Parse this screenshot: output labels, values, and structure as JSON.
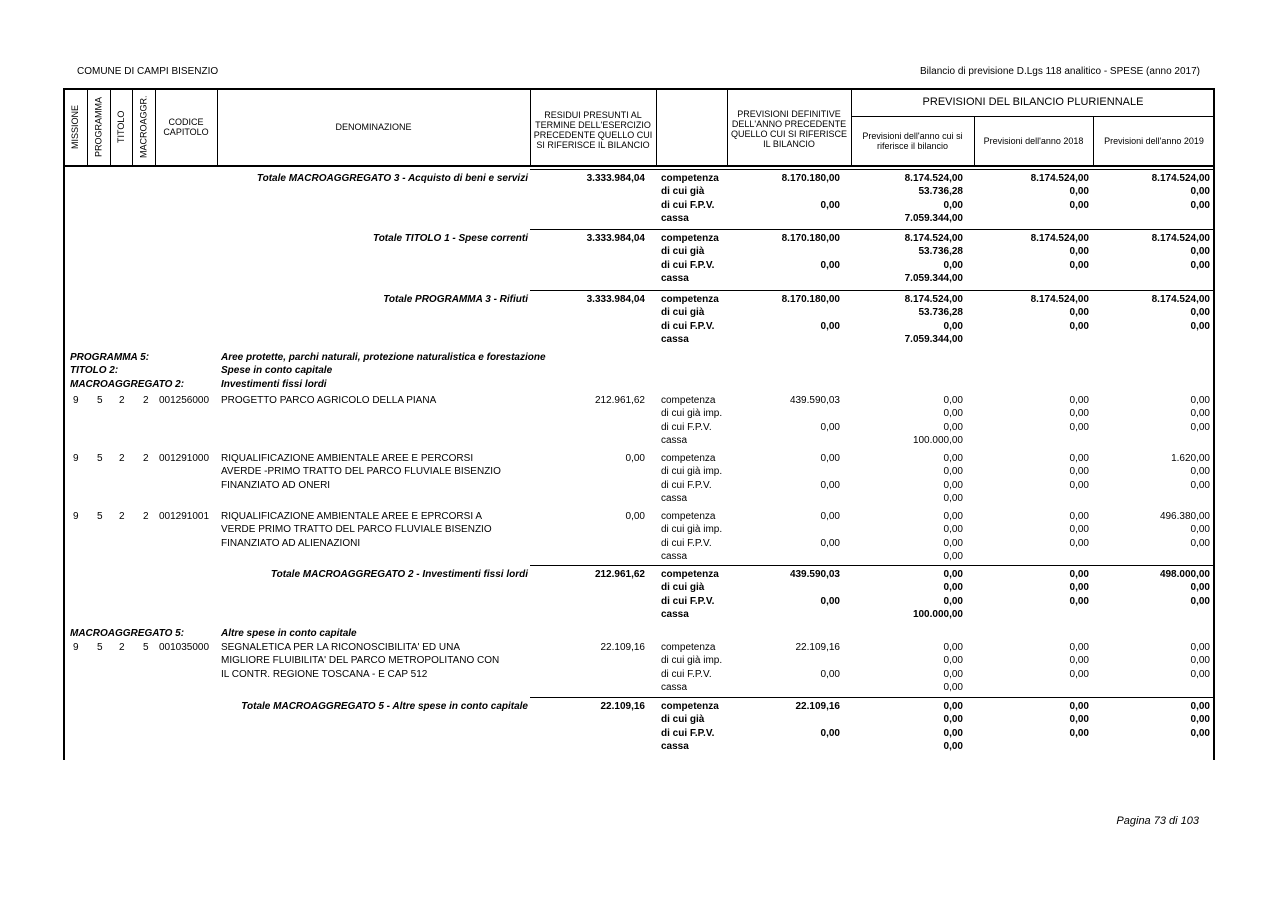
{
  "header": {
    "left": "COMUNE DI CAMPI BISENZIO",
    "right": "Bilancio di previsione D.Lgs 118 analitico - SPESE (anno 2017)"
  },
  "columns": {
    "missione": "MISSIONE",
    "programma": "PROGRAMMA",
    "titolo": "TITOLO",
    "macroaggr": "MACROAGGR.",
    "codice": "CODICE CAPITOLO",
    "denominazione": "DENOMINAZIONE",
    "residui": "RESIDUI PRESUNTI AL TERMINE DELL'ESERCIZIO PRECEDENTE QUELLO CUI SI RIFERISCE IL BILANCIO",
    "previsioni_definitive": "PREVISIONI DEFINITIVE DELL'ANNO PRECEDENTE QUELLO CUI SI RIFERISCE IL BILANCIO",
    "pluriennale": "PREVISIONI DEL BILANCIO PLURIENNALE",
    "anno1": "Previsioni dell'anno cui si riferisce il bilancio",
    "anno2": "Previsioni dell'anno 2018",
    "anno3": "Previsioni dell'anno 2019"
  },
  "blocks": [
    {
      "kind": "total",
      "label": "Totale MACROAGGREGATO 3 - Acquisto di beni e servizi",
      "residui": "3.333.984,04",
      "rows": [
        [
          "competenza",
          "8.170.180,00",
          "8.174.524,00",
          "8.174.524,00",
          "8.174.524,00"
        ],
        [
          "di cui già",
          null,
          "53.736,28",
          "0,00",
          "0,00"
        ],
        [
          "di cui F.P.V.",
          "0,00",
          "0,00",
          "0,00",
          "0,00"
        ],
        [
          "cassa",
          null,
          "7.059.344,00",
          null,
          null
        ]
      ]
    },
    {
      "kind": "total",
      "label": "Totale TITOLO 1 - Spese correnti",
      "residui": "3.333.984,04",
      "rows": [
        [
          "competenza",
          "8.170.180,00",
          "8.174.524,00",
          "8.174.524,00",
          "8.174.524,00"
        ],
        [
          "di cui già",
          null,
          "53.736,28",
          "0,00",
          "0,00"
        ],
        [
          "di cui F.P.V.",
          "0,00",
          "0,00",
          "0,00",
          "0,00"
        ],
        [
          "cassa",
          null,
          "7.059.344,00",
          null,
          null
        ]
      ]
    },
    {
      "kind": "total",
      "label": "Totale PROGRAMMA 3 - Rifiuti",
      "residui": "3.333.984,04",
      "rows": [
        [
          "competenza",
          "8.170.180,00",
          "8.174.524,00",
          "8.174.524,00",
          "8.174.524,00"
        ],
        [
          "di cui già",
          null,
          "53.736,28",
          "0,00",
          "0,00"
        ],
        [
          "di cui F.P.V.",
          "0,00",
          "0,00",
          "0,00",
          "0,00"
        ],
        [
          "cassa",
          null,
          "7.059.344,00",
          null,
          null
        ]
      ]
    },
    {
      "kind": "heading",
      "lines": [
        [
          "PROGRAMMA 5:",
          "Aree protette, parchi naturali, protezione naturalistica e forestazione"
        ],
        [
          "TITOLO 2:",
          "Spese in conto capitale"
        ],
        [
          "MACROAGGREGATO 2:",
          "Investimenti fissi lordi"
        ]
      ]
    },
    {
      "kind": "item",
      "codes": [
        "9",
        "5",
        "2",
        "2",
        "001256000"
      ],
      "desc": [
        "PROGETTO PARCO AGRICOLO DELLA PIANA"
      ],
      "residui": "212.961,62",
      "rows": [
        [
          "competenza",
          "439.590,03",
          "0,00",
          "0,00",
          "0,00"
        ],
        [
          "di cui già imp.",
          null,
          "0,00",
          "0,00",
          "0,00"
        ],
        [
          "di cui F.P.V.",
          "0,00",
          "0,00",
          "0,00",
          "0,00"
        ],
        [
          "cassa",
          null,
          "100.000,00",
          null,
          null
        ]
      ]
    },
    {
      "kind": "item",
      "codes": [
        "9",
        "5",
        "2",
        "2",
        "001291000"
      ],
      "desc": [
        "RIQUALIFICAZIONE AMBIENTALE AREE E PERCORSI",
        "AVERDE -PRIMO TRATTO DEL PARCO FLUVIALE BISENZIO",
        "FINANZIATO AD ONERI"
      ],
      "residui": "0,00",
      "rows": [
        [
          "competenza",
          "0,00",
          "0,00",
          "0,00",
          "1.620,00"
        ],
        [
          "di cui già imp.",
          null,
          "0,00",
          "0,00",
          "0,00"
        ],
        [
          "di cui F.P.V.",
          "0,00",
          "0,00",
          "0,00",
          "0,00"
        ],
        [
          "cassa",
          null,
          "0,00",
          null,
          null
        ]
      ]
    },
    {
      "kind": "item",
      "codes": [
        "9",
        "5",
        "2",
        "2",
        "001291001"
      ],
      "desc": [
        "RIQUALIFICAZIONE AMBIENTALE AREE E EPRCORSI A",
        "VERDE PRIMO TRATTO DEL PARCO FLUVIALE BISENZIO",
        "FINANZIATO AD ALIENAZIONI"
      ],
      "residui": "0,00",
      "rows": [
        [
          "competenza",
          "0,00",
          "0,00",
          "0,00",
          "496.380,00"
        ],
        [
          "di cui già imp.",
          null,
          "0,00",
          "0,00",
          "0,00"
        ],
        [
          "di cui F.P.V.",
          "0,00",
          "0,00",
          "0,00",
          "0,00"
        ],
        [
          "cassa",
          null,
          "0,00",
          null,
          null
        ]
      ]
    },
    {
      "kind": "total",
      "label": "Totale MACROAGGREGATO 2 - Investimenti fissi lordi",
      "residui": "212.961,62",
      "rows": [
        [
          "competenza",
          "439.590,03",
          "0,00",
          "0,00",
          "498.000,00"
        ],
        [
          "di cui già",
          null,
          "0,00",
          "0,00",
          "0,00"
        ],
        [
          "di cui F.P.V.",
          "0,00",
          "0,00",
          "0,00",
          "0,00"
        ],
        [
          "cassa",
          null,
          "100.000,00",
          null,
          null
        ]
      ]
    },
    {
      "kind": "heading",
      "lines": [
        [
          "MACROAGGREGATO 5:",
          "Altre spese in conto capitale"
        ]
      ]
    },
    {
      "kind": "item",
      "codes": [
        "9",
        "5",
        "2",
        "5",
        "001035000"
      ],
      "desc": [
        "SEGNALETICA PER LA RICONOSCIBILITA' ED UNA",
        "MIGLIORE FLUIBILITA' DEL PARCO METROPOLITANO CON",
        "IL CONTR. REGIONE TOSCANA - E CAP 512"
      ],
      "residui": "22.109,16",
      "rows": [
        [
          "competenza",
          "22.109,16",
          "0,00",
          "0,00",
          "0,00"
        ],
        [
          "di cui già imp.",
          null,
          "0,00",
          "0,00",
          "0,00"
        ],
        [
          "di cui F.P.V.",
          "0,00",
          "0,00",
          "0,00",
          "0,00"
        ],
        [
          "cassa",
          null,
          "0,00",
          null,
          null
        ]
      ]
    },
    {
      "kind": "total",
      "label": "Totale MACROAGGREGATO 5 - Altre spese in conto capitale",
      "residui": "22.109,16",
      "rows": [
        [
          "competenza",
          "22.109,16",
          "0,00",
          "0,00",
          "0,00"
        ],
        [
          "di cui già",
          null,
          "0,00",
          "0,00",
          "0,00"
        ],
        [
          "di cui F.P.V.",
          "0,00",
          "0,00",
          "0,00",
          "0,00"
        ],
        [
          "cassa",
          null,
          "0,00",
          null,
          null
        ]
      ]
    }
  ],
  "footer": "Pagina 73 di 103"
}
